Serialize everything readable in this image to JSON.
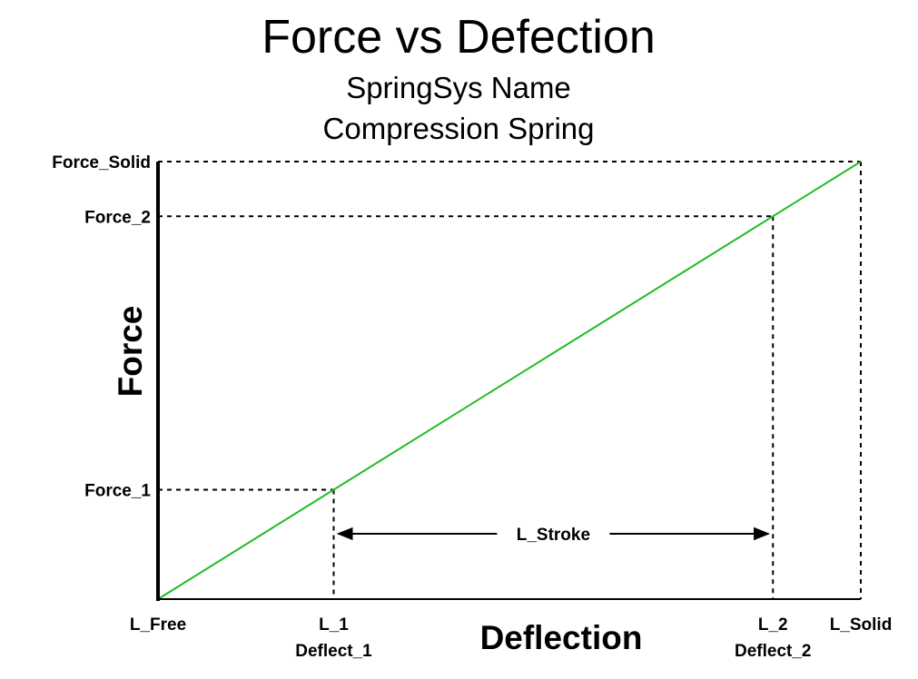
{
  "chart_data": {
    "type": "line",
    "title": "Force vs Defection",
    "subtitle_lines": [
      "SpringSys Name",
      "Compression Spring"
    ],
    "xlabel": "Deflection",
    "ylabel": "Force",
    "x_ticks": [
      {
        "lines": [
          "L_Free"
        ],
        "value": 0
      },
      {
        "lines": [
          "L_1",
          "Deflect_1"
        ],
        "value": 0.2
      },
      {
        "lines": [
          "L_2",
          "Deflect_2"
        ],
        "value": 0.7
      },
      {
        "lines": [
          "L_Solid"
        ],
        "value": 0.8
      }
    ],
    "y_ticks": [
      {
        "label": "Force_1",
        "value": 0.2
      },
      {
        "label": "Force_2",
        "value": 0.7
      },
      {
        "label": "Force_Solid",
        "value": 0.8
      }
    ],
    "series": [
      {
        "color": "#22bb22",
        "points": [
          [
            0,
            0
          ],
          [
            0.8,
            0.8
          ]
        ]
      }
    ],
    "xlim": [
      0,
      0.8
    ],
    "ylim": [
      0,
      0.8
    ],
    "grid": false,
    "annotations": [
      {
        "label": "L_Stroke",
        "from_x": 0.2,
        "to_x": 0.7,
        "type": "double-arrow"
      }
    ]
  }
}
